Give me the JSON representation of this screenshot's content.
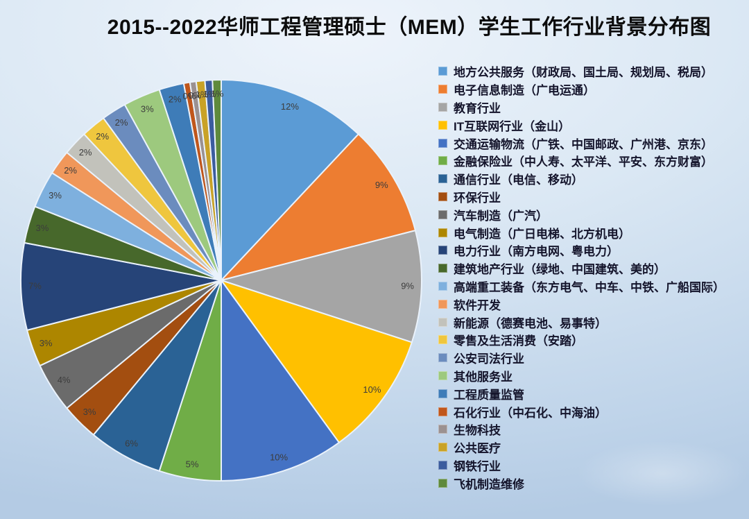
{
  "background": {
    "top": "#EEF4FB",
    "bottom": "#B4CBE4"
  },
  "chart_data": {
    "type": "pie",
    "title": "2015--2022华师工程管理硕士（MEM）学生工作行业背景分布图",
    "direction": "clockwise",
    "start_angle_deg": 0,
    "legend_position": "right",
    "slice_border_color": "#EAF2FB",
    "label_color": "#3C3C3C",
    "slices": [
      {
        "label": "地方公共服务（财政局、国土局、规划局、税局）",
        "value_pct": 12,
        "display": "12%",
        "color": "#5B9BD5"
      },
      {
        "label": "电子信息制造（广电运通）",
        "value_pct": 9,
        "display": "9%",
        "color": "#ED7D31"
      },
      {
        "label": "教育行业",
        "value_pct": 9,
        "display": "9%",
        "color": "#A5A5A5"
      },
      {
        "label": "IT互联网行业（金山）",
        "value_pct": 10,
        "display": "10%",
        "color": "#FFC000"
      },
      {
        "label": "交通运输物流（广铁、中国邮政、广州港、京东）",
        "value_pct": 10,
        "display": "10%",
        "color": "#4472C4"
      },
      {
        "label": "金融保险业（中人寿、太平洋、平安、东方财富）",
        "value_pct": 5,
        "display": "5%",
        "color": "#70AD47"
      },
      {
        "label": "通信行业（电信、移动）",
        "value_pct": 6,
        "display": "6%",
        "color": "#2A6295"
      },
      {
        "label": "环保行业",
        "value_pct": 3,
        "display": "3%",
        "color": "#A34E10"
      },
      {
        "label": "汽车制造（广汽）",
        "value_pct": 4,
        "display": "4%",
        "color": "#6B6B6B"
      },
      {
        "label": "电气制造（广日电梯、北方机电）",
        "value_pct": 3,
        "display": "3%",
        "color": "#AD8600"
      },
      {
        "label": "电力行业（南方电网、粤电力）",
        "value_pct": 7,
        "display": "7%",
        "color": "#264478"
      },
      {
        "label": "建筑地产行业（绿地、中国建筑、美的）",
        "value_pct": 3,
        "display": "3%",
        "color": "#47682B"
      },
      {
        "label": "高端重工装备（东方电气、中车、中铁、广船国际）",
        "value_pct": 3,
        "display": "3%",
        "color": "#7EB0DE"
      },
      {
        "label": "软件开发",
        "value_pct": 2,
        "display": "2%",
        "color": "#F0975A"
      },
      {
        "label": "新能源（德赛电池、易事特）",
        "value_pct": 2,
        "display": "2%",
        "color": "#C2C2BB"
      },
      {
        "label": "零售及生活消费（安踏）",
        "value_pct": 2,
        "display": "2%",
        "color": "#EFC63E"
      },
      {
        "label": "公安司法行业",
        "value_pct": 2,
        "display": "2%",
        "color": "#6B8CBE"
      },
      {
        "label": "其他服务业",
        "value_pct": 3,
        "display": "3%",
        "color": "#9DC97E"
      },
      {
        "label": "工程质量监管",
        "value_pct": 2,
        "display": "2%",
        "color": "#3E7CB8"
      },
      {
        "label": "石化行业（中石化、中海油）",
        "value_pct": 0,
        "display": "0%",
        "color": "#C0561B",
        "render_weight": 0.5
      },
      {
        "label": "生物科技",
        "value_pct": 0,
        "display": "0%",
        "color": "#9B9191",
        "render_weight": 0.5
      },
      {
        "label": "公共医疗",
        "value_pct": 1,
        "display": "1%",
        "color": "#C9A227",
        "render_weight": 0.7
      },
      {
        "label": "钢铁行业",
        "value_pct": 1,
        "display": "1%",
        "color": "#3B5C9E",
        "render_weight": 0.6
      },
      {
        "label": "飞机制造维修",
        "value_pct": 1,
        "display": "1%",
        "color": "#5F8A3C",
        "render_weight": 0.7
      }
    ]
  }
}
